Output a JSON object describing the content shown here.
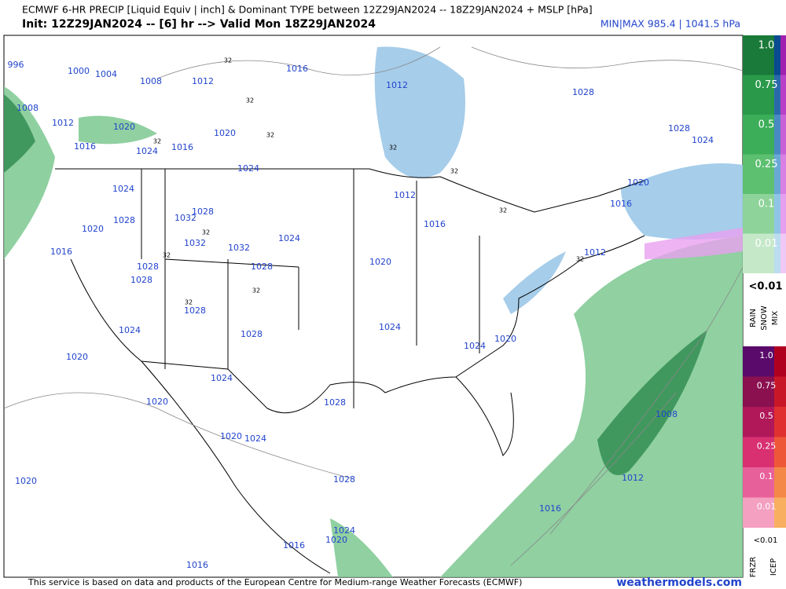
{
  "header": {
    "title": "ECMWF 6-HR PRECIP [Liquid Equiv | inch] & Dominant TYPE between 12Z29JAN2024 -- 18Z29JAN2024 + MSLP [hPa]",
    "init_line": "Init: 12Z29JAN2024 -- [6] hr --> Valid Mon 18Z29JAN2024",
    "minmax": "MIN|MAX 985.4 | 1041.5 hPa"
  },
  "legend_top": {
    "levels": [
      "1.0",
      "0.75",
      "0.5",
      "0.25",
      "0.1",
      "0.01"
    ],
    "below": "<0.01",
    "types": [
      "RAIN",
      "SNOW",
      "MIX"
    ]
  },
  "legend_bottom": {
    "levels": [
      "1.0",
      "0.75",
      "0.5",
      "0.25",
      "0.1",
      "0.01"
    ],
    "below": "<0.01",
    "types": [
      "FRZR",
      "ICEP"
    ]
  },
  "map": {
    "isobar_labels": [
      "996",
      "1000",
      "1004",
      "1008",
      "1012",
      "1016",
      "1012",
      "1028",
      "1028",
      "1024",
      "1008",
      "1012",
      "1016",
      "1020",
      "1024",
      "1016",
      "1020",
      "1024",
      "1024",
      "1012",
      "1016",
      "1020",
      "1016",
      "1028",
      "1032",
      "1028",
      "1020",
      "1016",
      "1032",
      "1032",
      "1024",
      "1028",
      "1028",
      "1028",
      "1020",
      "1012",
      "1028",
      "1024",
      "1028",
      "1024",
      "1024",
      "1020",
      "1020",
      "1024",
      "1020",
      "1028",
      "1008",
      "1020",
      "1024",
      "1020",
      "1028",
      "1012",
      "1016",
      "1024",
      "1020",
      "1016",
      "1016"
    ],
    "temp_labels": [
      "32",
      "32",
      "32",
      "32",
      "32",
      "32",
      "32",
      "32",
      "32",
      "32",
      "32",
      "32"
    ]
  },
  "footer": {
    "credit": "This service is based on data and products of the European Centre for Medium-range Weather Forecasts (ECMWF)",
    "site": "weathermodels.com"
  }
}
